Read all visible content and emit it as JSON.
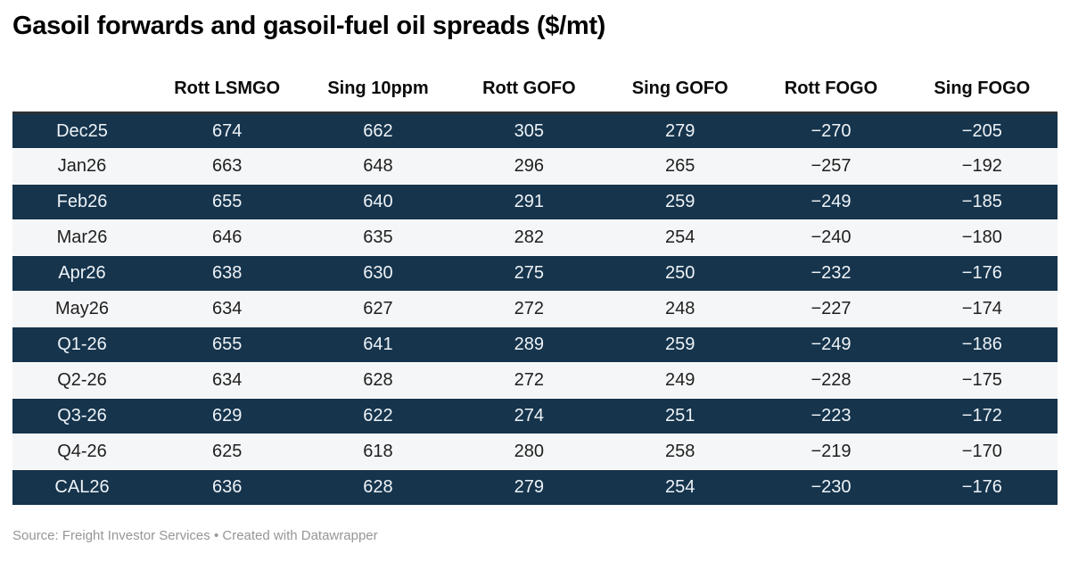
{
  "title": "Gasoil forwards and gasoil-fuel oil spreads ($/mt)",
  "colors": {
    "dark_row_bg": "#16344c",
    "light_row_bg": "#f5f6f7",
    "dark_row_text": "#eef3f7",
    "light_row_text": "#1f1f1f",
    "top_border": "#2b3238",
    "header_text": "#0a0a0a",
    "title_text": "#000000",
    "footer_text": "#969696",
    "page_bg": "#ffffff"
  },
  "table": {
    "corner_label": ""
  },
  "chart_data": {
    "type": "table",
    "title": "Gasoil forwards and gasoil-fuel oil spreads ($/mt)",
    "columns": [
      "Rott LSMGO",
      "Sing 10ppm",
      "Rott GOFO",
      "Sing GOFO",
      "Rott FOGO",
      "Sing FOGO"
    ],
    "row_labels": [
      "Dec25",
      "Jan26",
      "Feb26",
      "Mar26",
      "Apr26",
      "May26",
      "Q1-26",
      "Q2-26",
      "Q3-26",
      "Q4-26",
      "CAL26"
    ],
    "rows": [
      [
        674,
        662,
        305,
        279,
        -270,
        -205
      ],
      [
        663,
        648,
        296,
        265,
        -257,
        -192
      ],
      [
        655,
        640,
        291,
        259,
        -249,
        -185
      ],
      [
        646,
        635,
        282,
        254,
        -240,
        -180
      ],
      [
        638,
        630,
        275,
        250,
        -232,
        -176
      ],
      [
        634,
        627,
        272,
        248,
        -227,
        -174
      ],
      [
        655,
        641,
        289,
        259,
        -249,
        -186
      ],
      [
        634,
        628,
        272,
        249,
        -228,
        -175
      ],
      [
        629,
        622,
        274,
        251,
        -223,
        -172
      ],
      [
        625,
        618,
        280,
        258,
        -219,
        -170
      ],
      [
        636,
        628,
        279,
        254,
        -230,
        -176
      ]
    ],
    "layout_hints": {
      "striping": "rows alternate dark navy / light gray starting with dark",
      "alignment": "all cells centered",
      "units": "$/mt"
    }
  },
  "footer": {
    "source_label": "Source: ",
    "source": "Freight Investor Services",
    "separator": " • ",
    "attribution": "Created with Datawrapper"
  }
}
